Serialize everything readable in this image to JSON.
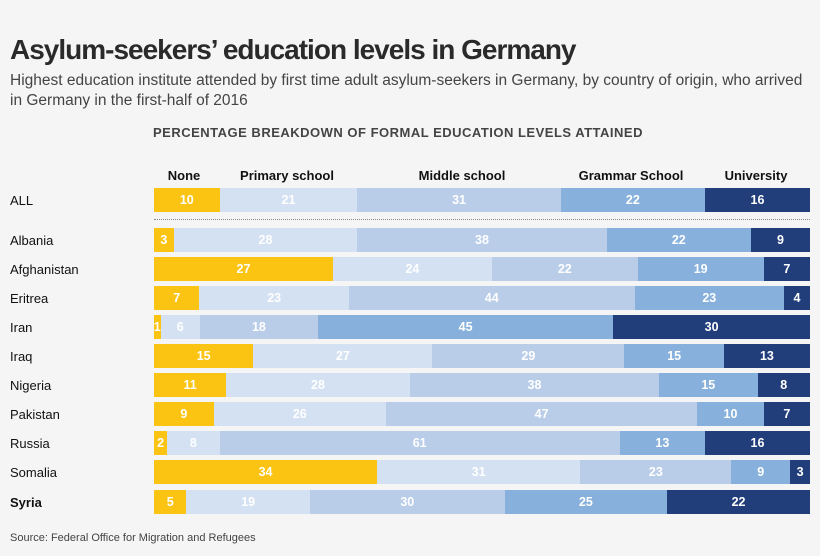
{
  "title": "Asylum-seekers’ education levels in Germany",
  "subtitle": "Highest education institute attended by first time adult asylum-seekers in Germany, by country of origin, who arrived in Germany in the first-half of 2016",
  "source": "Source: Federal Office for Migration and Refugees",
  "chart_data": {
    "type": "bar",
    "stacked": true,
    "orientation": "horizontal",
    "title": "PERCENTAGE BREAKDOWN OF FORMAL EDUCATION LEVELS ATTAINED",
    "series_names": [
      "None",
      "Primary school",
      "Middle school",
      "Grammar School",
      "University"
    ],
    "colors": [
      "#fbc312",
      "#d4e1f2",
      "#b9cde9",
      "#87b1dc",
      "#213d7a"
    ],
    "categories": [
      "ALL",
      "Albania",
      "Afghanistan",
      "Eritrea",
      "Iran",
      "Iraq",
      "Nigeria",
      "Pakistan",
      "Russia",
      "Somalia",
      "Syria"
    ],
    "highlight": "Syria",
    "values": [
      [
        10,
        21,
        31,
        22,
        16
      ],
      [
        3,
        28,
        38,
        22,
        9
      ],
      [
        27,
        24,
        22,
        19,
        7
      ],
      [
        7,
        23,
        44,
        23,
        4
      ],
      [
        1,
        6,
        18,
        45,
        30
      ],
      [
        15,
        27,
        29,
        15,
        13
      ],
      [
        11,
        28,
        38,
        15,
        8
      ],
      [
        9,
        26,
        47,
        10,
        7
      ],
      [
        2,
        8,
        61,
        13,
        16
      ],
      [
        34,
        31,
        23,
        9,
        3
      ],
      [
        5,
        19,
        30,
        25,
        22
      ]
    ]
  }
}
